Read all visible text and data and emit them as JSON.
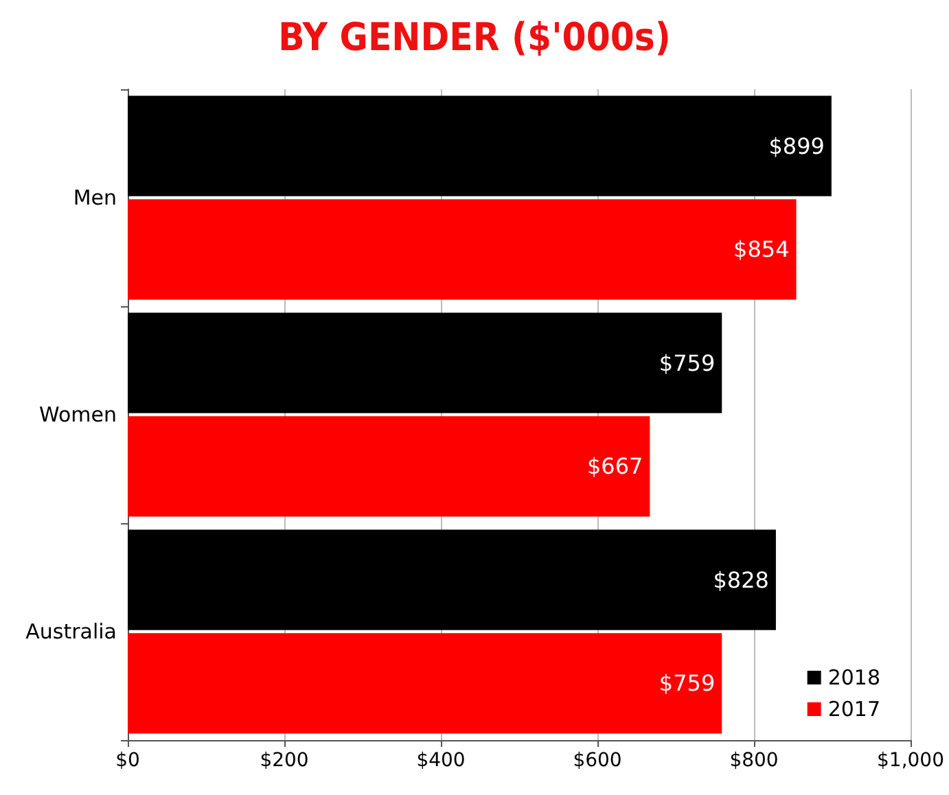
{
  "chart_data": {
    "type": "bar",
    "orientation": "horizontal",
    "title": "BY GENDER ($'000s)",
    "categories": [
      "Men",
      "Women",
      "Australia"
    ],
    "series": [
      {
        "name": "2018",
        "color": "#000000",
        "values": [
          899,
          759,
          828
        ],
        "value_labels": [
          "$899",
          "$759",
          "$828"
        ]
      },
      {
        "name": "2017",
        "color": "#ff0000",
        "values": [
          854,
          667,
          759
        ],
        "value_labels": [
          "$854",
          "$667",
          "$759"
        ]
      }
    ],
    "xlim": [
      0,
      1000
    ],
    "xticks": [
      {
        "value": 0,
        "label": "$0"
      },
      {
        "value": 200,
        "label": "$200"
      },
      {
        "value": 400,
        "label": "$400"
      },
      {
        "value": 600,
        "label": "$600"
      },
      {
        "value": 800,
        "label": "$800"
      },
      {
        "value": 1000,
        "label": "$1,000"
      }
    ],
    "grid": "x",
    "legend": "bottom right"
  }
}
